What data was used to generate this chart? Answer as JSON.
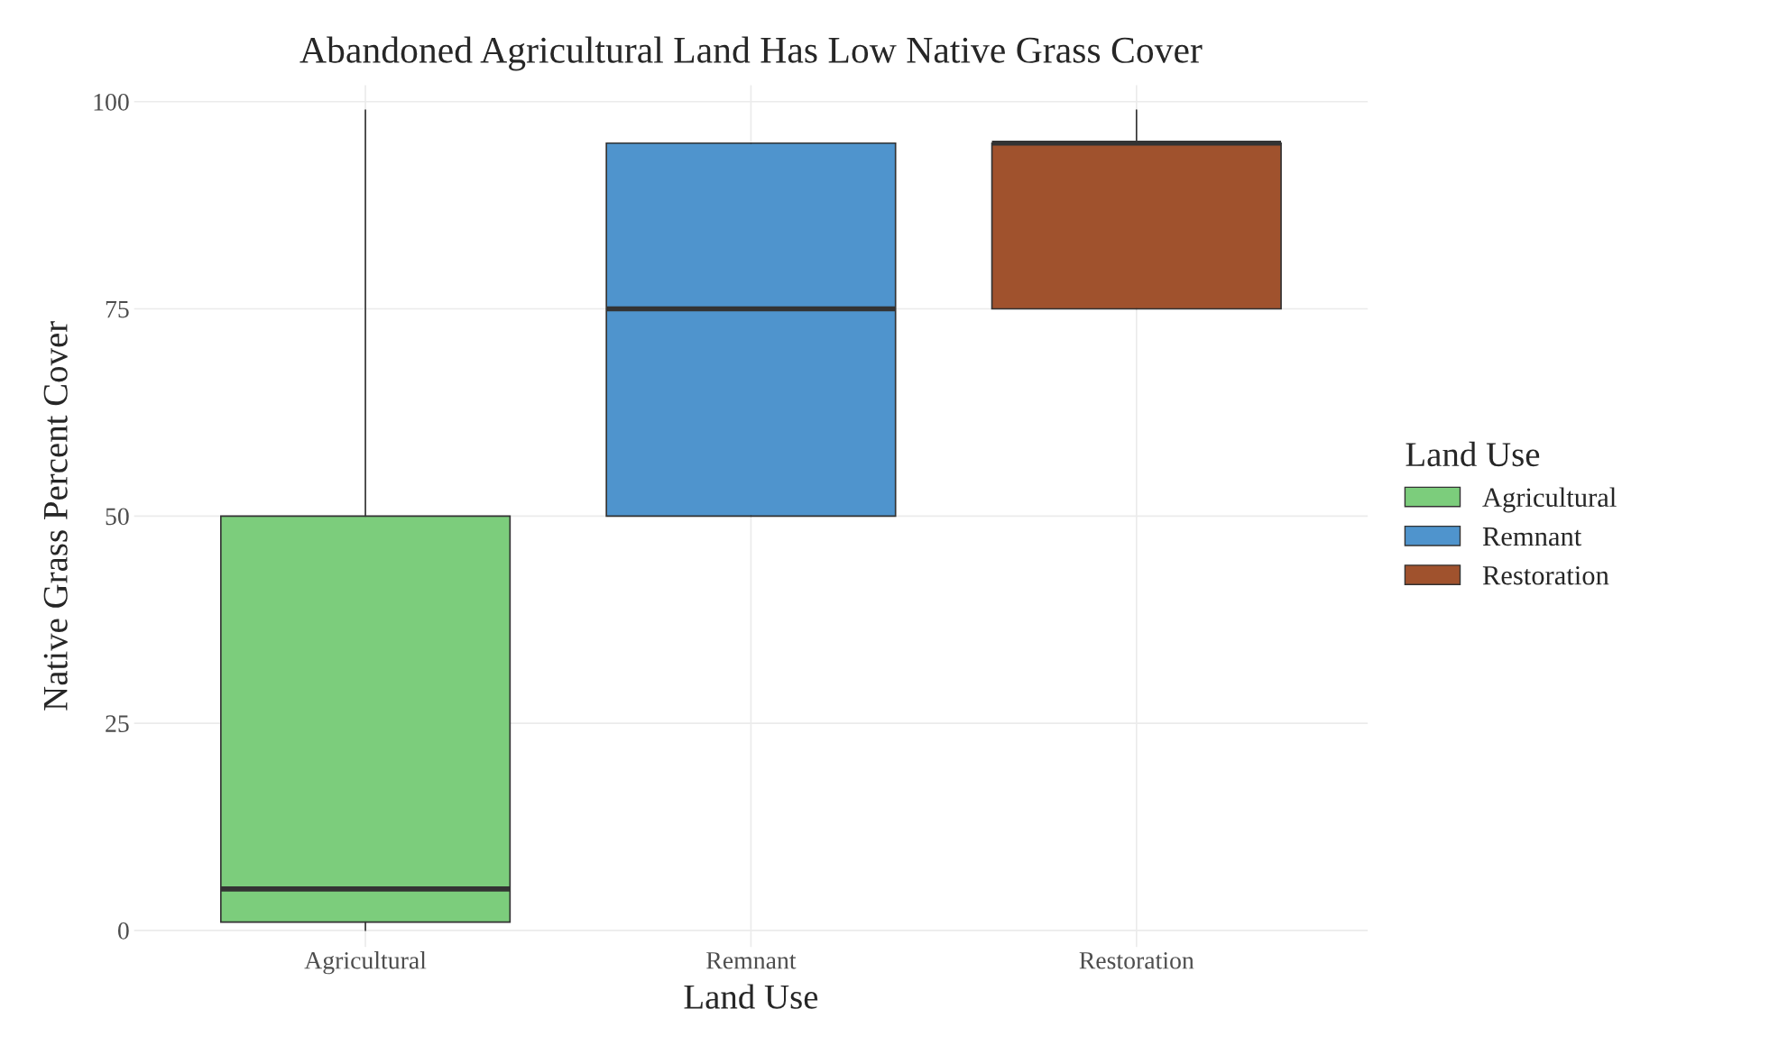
{
  "chart_data": {
    "type": "box",
    "title": "Abandoned Agricultural Land Has Low Native Grass Cover",
    "xlabel": "Land Use",
    "ylabel": "Native Grass Percent Cover",
    "legend_title": "Land Use",
    "categories": [
      "Agricultural",
      "Remnant",
      "Restoration"
    ],
    "series": [
      {
        "name": "Agricultural",
        "color": "#7ccd7c",
        "boxes": [
          {
            "low": 0,
            "q1": 1,
            "median": 5,
            "q3": 50,
            "high": 99
          },
          null,
          null
        ]
      },
      {
        "name": "Remnant",
        "color": "#4f94cd",
        "boxes": [
          null,
          {
            "low": 50,
            "q1": 50,
            "median": 75,
            "q3": 95,
            "high": 95
          },
          null
        ]
      },
      {
        "name": "Restoration",
        "color": "#a0522d",
        "boxes": [
          null,
          null,
          {
            "low": 75,
            "q1": 75,
            "median": 95,
            "q3": 95,
            "high": 99
          }
        ]
      }
    ],
    "ylim": [
      -2,
      102
    ],
    "yticks": [
      0,
      25,
      50,
      75,
      100
    ],
    "grid": true,
    "legend": "right"
  }
}
